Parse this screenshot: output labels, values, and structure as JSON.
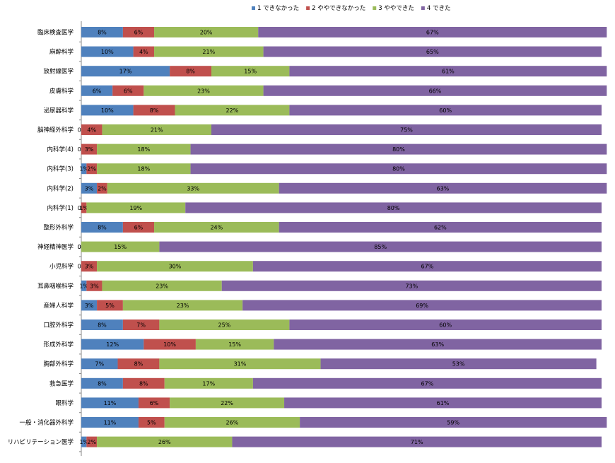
{
  "chart_data": {
    "type": "bar",
    "orientation": "horizontal",
    "stacked": true,
    "xlim": [
      0,
      100
    ],
    "legend_position": "top-right",
    "categories": [
      "臨床検査医学",
      "麻酔科学",
      "放射線医学",
      "皮膚科学",
      "泌尿器科学",
      "脳神経外科学",
      "内科学(4)",
      "内科学(3)",
      "内科学(2)",
      "内科学(1)",
      "整形外科学",
      "神経精神医学",
      "小児科学",
      "耳鼻咽喉科学",
      "産婦人科学",
      "口腔外科学",
      "形成外科学",
      "胸部外科学",
      "救急医学",
      "眼科学",
      "一般・消化器外科学",
      "リハビリテーション医学"
    ],
    "series": [
      {
        "name": "1 できなかった",
        "color": "#4f81bd",
        "values": [
          8,
          10,
          17,
          6,
          10,
          0,
          0,
          1,
          3,
          0,
          8,
          0,
          0,
          1,
          3,
          8,
          12,
          7,
          8,
          11,
          11,
          1
        ]
      },
      {
        "name": "2 ややできなかった",
        "color": "#c0504d",
        "values": [
          6,
          4,
          8,
          6,
          8,
          4,
          3,
          2,
          2,
          1,
          6,
          0,
          3,
          3,
          5,
          7,
          10,
          8,
          8,
          6,
          5,
          2
        ]
      },
      {
        "name": "3 ややできた",
        "color": "#9bbb59",
        "values": [
          20,
          21,
          15,
          23,
          22,
          21,
          18,
          18,
          33,
          19,
          24,
          15,
          30,
          23,
          23,
          25,
          15,
          31,
          17,
          22,
          26,
          26
        ]
      },
      {
        "name": "4 できた",
        "color": "#8064a2",
        "values": [
          67,
          65,
          61,
          66,
          60,
          75,
          80,
          80,
          63,
          80,
          62,
          85,
          67,
          73,
          69,
          60,
          63,
          53,
          67,
          61,
          59,
          71
        ]
      }
    ]
  }
}
